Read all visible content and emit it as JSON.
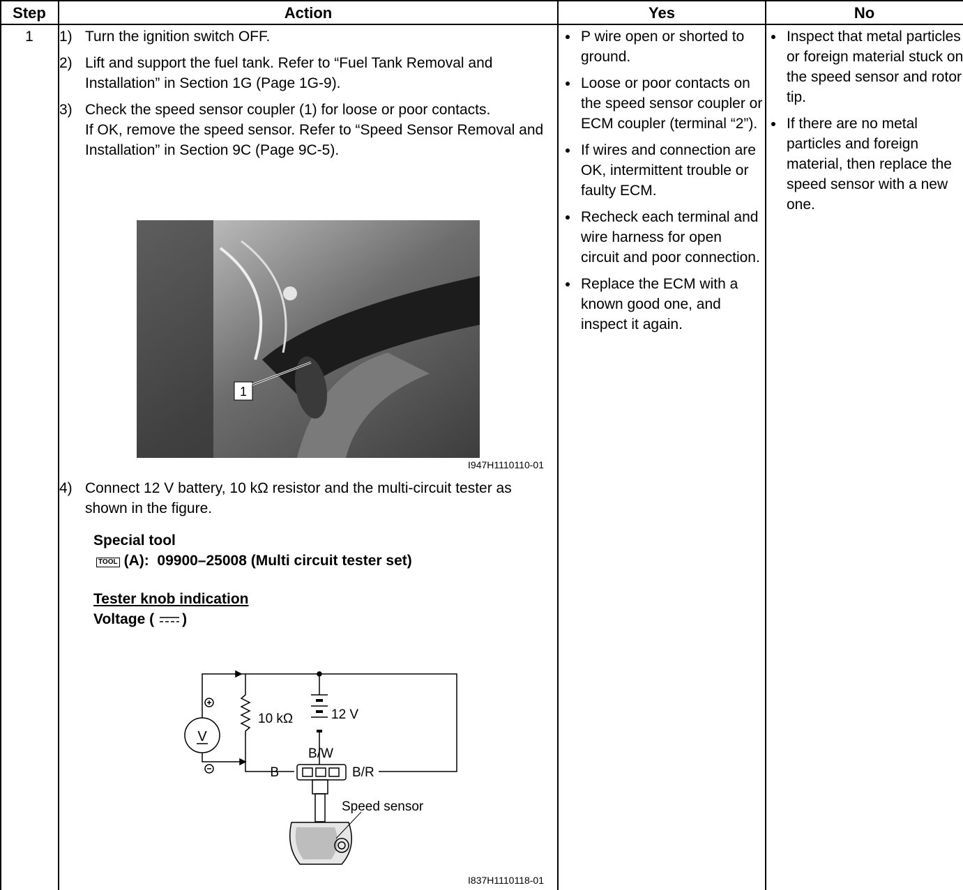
{
  "table": {
    "headers": [
      "Step",
      "Action",
      "Yes",
      "No"
    ],
    "step": "1",
    "action": {
      "steps": [
        {
          "num": "1)",
          "lines": [
            "Turn the ignition switch OFF."
          ]
        },
        {
          "num": "2)",
          "lines": [
            "Lift and support the fuel tank. Refer to “Fuel Tank Removal and Installation” in Section 1G (Page 1G-9)."
          ]
        },
        {
          "num": "3)",
          "lines": [
            "Check the speed sensor coupler (1) for loose or poor contacts.",
            "If OK, remove the speed sensor. Refer to “Speed Sensor Removal and Installation” in Section 9C (Page 9C-5)."
          ]
        }
      ],
      "photo": {
        "callout": "1",
        "id": "I947H1110110-01"
      },
      "step4": {
        "num": "4)",
        "text": "Connect 12 V battery, 10 kΩ resistor and the multi-circuit tester as shown in the figure."
      },
      "special_tool": {
        "title": "Special tool",
        "icon": "TOOL",
        "item": "(A):  09900–25008 (Multi circuit tester set)"
      },
      "tester_knob": {
        "title": "Tester knob indication",
        "setting_open": "Voltage (",
        "setting_close": ")"
      },
      "diagram": {
        "meter": "V",
        "resistor": "10 kΩ",
        "battery": "12 V",
        "wire_center": "B/W",
        "wire_left": "B",
        "wire_right": "B/R",
        "sensor": "Speed sensor",
        "id": "I837H1110118-01"
      }
    },
    "yes": [
      "P wire open or shorted to ground.",
      "Loose or poor contacts on the speed sensor coupler or ECM coupler (terminal “2”).",
      "If wires and connection are OK, intermittent trouble or faulty ECM.",
      "Recheck each terminal and wire harness for open circuit and poor connection.",
      "Replace the ECM with a known good one, and inspect it again."
    ],
    "no": [
      "Inspect that metal particles or foreign material stuck on the speed sensor and rotor tip.",
      "If there are no metal particles and foreign material, then replace the speed sensor with a new one."
    ]
  }
}
